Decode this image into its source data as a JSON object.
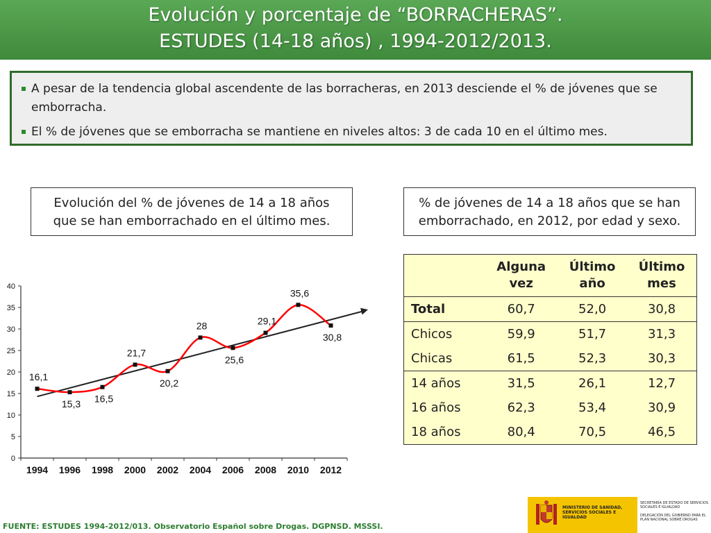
{
  "header": {
    "title_line1": "Evolución y porcentaje de “BORRACHERAS”.",
    "title_line2": "ESTUDES (14-18 años) , 1994-2012/2013",
    "title_period": "."
  },
  "summary": {
    "bullets": [
      "A pesar de la tendencia global ascendente de las borracheras, en 2013 desciende el % de jóvenes que se emborracha.",
      "El % de jóvenes que se emborracha se mantiene en niveles altos: 3 de cada 10 en el último mes."
    ]
  },
  "left_caption": {
    "line1": "Evolución del % de jóvenes de 14 a 18 años",
    "line2": "que se han emborrachado en el último mes."
  },
  "right_caption": {
    "line1": "% de jóvenes de 14 a 18 años que se han",
    "line2": "emborrachado, en 2012, por edad y sexo."
  },
  "chart_data": {
    "type": "line",
    "title": "",
    "xlabel": "",
    "ylabel": "",
    "x": [
      "1994",
      "1996",
      "1998",
      "2000",
      "2002",
      "2004",
      "2006",
      "2008",
      "2010",
      "2012"
    ],
    "ylim": [
      0,
      40
    ],
    "yticks": [
      "0",
      "5",
      "10",
      "15",
      "20",
      "25",
      "30",
      "35",
      "40"
    ],
    "grid": false,
    "series": [
      {
        "name": "",
        "values": [
          16.1,
          15.3,
          16.5,
          21.7,
          20.2,
          28,
          25.6,
          29.1,
          35.6,
          30.8
        ],
        "labels": [
          "16,1",
          "15,3",
          "16,5",
          "21,7",
          "20,2",
          "28",
          "25,6",
          "29,1",
          "35,6",
          "30,8"
        ],
        "color": "#ff0000"
      }
    ],
    "trend": {
      "from": 14.3,
      "to": 34.5,
      "color": "#222222"
    }
  },
  "table": {
    "headers": [
      {
        "line1": "",
        "line2": ""
      },
      {
        "line1": "Alguna",
        "line2": "vez"
      },
      {
        "line1": "Último",
        "line2": "año"
      },
      {
        "line1": "Último",
        "line2": "mes"
      }
    ],
    "rows": [
      {
        "label": "Total",
        "values": [
          "60,7",
          "52,0",
          "30,8"
        ]
      },
      {
        "label": "Chicos",
        "values": [
          "59,9",
          "51,7",
          "31,3"
        ]
      },
      {
        "label": "Chicas",
        "values": [
          "61,5",
          "52,3",
          "30,3"
        ]
      },
      {
        "label": "14 años",
        "values": [
          "31,5",
          "26,1",
          "12,7"
        ]
      },
      {
        "label": "16 años",
        "values": [
          "62,3",
          "53,4",
          "30,9"
        ]
      },
      {
        "label": "18 años",
        "values": [
          "80,4",
          "70,5",
          "46,5"
        ]
      }
    ]
  },
  "source": "FUENTE: ESTUDES 1994-2012/013. Observatorio Español sobre Drogas. DGPNSD. MSSSI.",
  "logo": {
    "ministry": "MINISTERIO DE SANIDAD, SERVICIOS SOCIALES E IGUALDAD",
    "secretaria": "SECRETARÍA DE ESTADO DE SERVICIOS SOCIALES E IGUALDAD",
    "delegacion": "DELEGACIÓN DEL GOBIERNO PARA EL PLAN NACIONAL SOBRE DROGAS"
  },
  "colors": {
    "header_green": "#4a9a46",
    "border_green": "#2f6b2a",
    "table_bg": "#ffffcc",
    "line_red": "#ff0000"
  }
}
